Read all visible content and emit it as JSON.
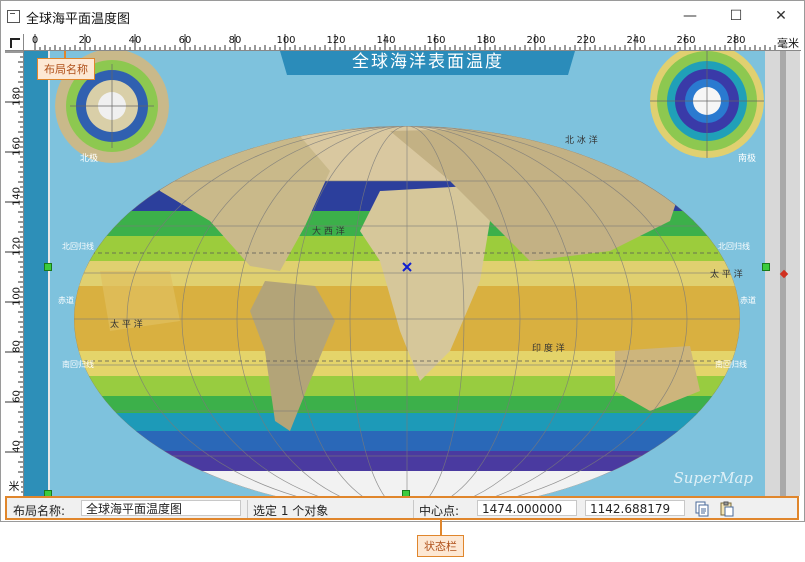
{
  "window": {
    "title": "全球海平面温度图",
    "minimize": "—",
    "maximize": "☐",
    "close": "✕"
  },
  "ruler": {
    "horizontal_ticks": [
      "0",
      "20",
      "40",
      "60",
      "80",
      "100",
      "120",
      "140",
      "160",
      "180",
      "200",
      "220",
      "240",
      "260",
      "280"
    ],
    "vertical_ticks": [
      "180",
      "160",
      "140",
      "120",
      "100",
      "80",
      "60",
      "40"
    ],
    "unit_h": "毫米",
    "unit_v": "米"
  },
  "map": {
    "title": "全球海洋表面温度",
    "north_label": "北极",
    "south_label": "南极",
    "labels": {
      "tropic_north_left": "北回归线",
      "tropic_north_right": "北回归线",
      "equator_left": "赤道",
      "equator_right": "赤道",
      "tropic_south_left": "南回归线",
      "tropic_south_right": "南回归线",
      "pacific": "太 平 洋",
      "atlantic": "大 西 洋",
      "indian": "印 度 洋",
      "pacific_right": "太 平 洋",
      "arctic": "北 冰 洋"
    },
    "watermark": "SuperMap"
  },
  "callouts": {
    "layout_name": "布局名称",
    "statusbar": "状态栏"
  },
  "statusbar": {
    "layout_label": "布局名称:",
    "layout_value": "全球海平面温度图",
    "selection": "选定 1 个对象",
    "center_label": "中心点:",
    "center_x": "1474.000000",
    "center_y": "1142.688179"
  },
  "colors": {
    "ocean_bg": "#7ec2dd",
    "callout_border": "#e0862c",
    "handle": "#3ccc3c"
  }
}
